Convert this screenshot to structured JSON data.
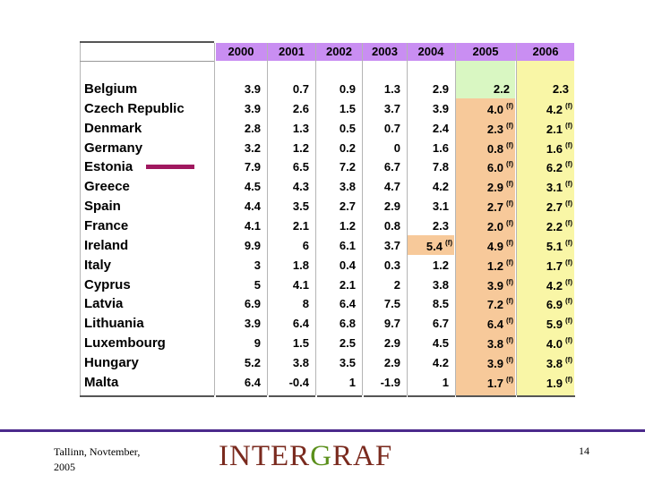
{
  "table": {
    "years": [
      "2000",
      "2001",
      "2002",
      "2003",
      "2004",
      "2005",
      "2006"
    ],
    "forecast_mark": "(f)",
    "rows": [
      {
        "country": "Belgium",
        "values": [
          {
            "v": "3.9"
          },
          {
            "v": "0.7"
          },
          {
            "v": "0.9"
          },
          {
            "v": "1.3"
          },
          {
            "v": "2.9"
          },
          {
            "v": "2.2"
          },
          {
            "v": "2.3"
          }
        ]
      },
      {
        "country": "Czech Republic",
        "values": [
          {
            "v": "3.9"
          },
          {
            "v": "2.6"
          },
          {
            "v": "1.5"
          },
          {
            "v": "3.7"
          },
          {
            "v": "3.9"
          },
          {
            "v": "4.0",
            "f": true
          },
          {
            "v": "4.2",
            "f": true
          }
        ]
      },
      {
        "country": "Denmark",
        "values": [
          {
            "v": "2.8"
          },
          {
            "v": "1.3"
          },
          {
            "v": "0.5"
          },
          {
            "v": "0.7"
          },
          {
            "v": "2.4"
          },
          {
            "v": "2.3",
            "f": true
          },
          {
            "v": "2.1",
            "f": true
          }
        ]
      },
      {
        "country": "Germany",
        "values": [
          {
            "v": "3.2"
          },
          {
            "v": "1.2"
          },
          {
            "v": "0.2"
          },
          {
            "v": "0"
          },
          {
            "v": "1.6"
          },
          {
            "v": "0.8",
            "f": true
          },
          {
            "v": "1.6",
            "f": true
          }
        ]
      },
      {
        "country": "Estonia",
        "values": [
          {
            "v": "7.9"
          },
          {
            "v": "6.5"
          },
          {
            "v": "7.2"
          },
          {
            "v": "6.7"
          },
          {
            "v": "7.8"
          },
          {
            "v": "6.0",
            "f": true
          },
          {
            "v": "6.2",
            "f": true
          }
        ]
      },
      {
        "country": "Greece",
        "values": [
          {
            "v": "4.5"
          },
          {
            "v": "4.3"
          },
          {
            "v": "3.8"
          },
          {
            "v": "4.7"
          },
          {
            "v": "4.2"
          },
          {
            "v": "2.9",
            "f": true
          },
          {
            "v": "3.1",
            "f": true
          }
        ]
      },
      {
        "country": "Spain",
        "values": [
          {
            "v": "4.4"
          },
          {
            "v": "3.5"
          },
          {
            "v": "2.7"
          },
          {
            "v": "2.9"
          },
          {
            "v": "3.1"
          },
          {
            "v": "2.7",
            "f": true
          },
          {
            "v": "2.7",
            "f": true
          }
        ]
      },
      {
        "country": "France",
        "values": [
          {
            "v": "4.1"
          },
          {
            "v": "2.1"
          },
          {
            "v": "1.2"
          },
          {
            "v": "0.8"
          },
          {
            "v": "2.3"
          },
          {
            "v": "2.0",
            "f": true
          },
          {
            "v": "2.2",
            "f": true
          }
        ]
      },
      {
        "country": "Ireland",
        "values": [
          {
            "v": "9.9"
          },
          {
            "v": "6"
          },
          {
            "v": "6.1"
          },
          {
            "v": "3.7"
          },
          {
            "v": "5.4",
            "f": true
          },
          {
            "v": "4.9",
            "f": true
          },
          {
            "v": "5.1",
            "f": true
          }
        ]
      },
      {
        "country": "Italy",
        "values": [
          {
            "v": "3"
          },
          {
            "v": "1.8"
          },
          {
            "v": "0.4"
          },
          {
            "v": "0.3"
          },
          {
            "v": "1.2"
          },
          {
            "v": "1.2",
            "f": true
          },
          {
            "v": "1.7",
            "f": true
          }
        ]
      },
      {
        "country": "Cyprus",
        "values": [
          {
            "v": "5"
          },
          {
            "v": "4.1"
          },
          {
            "v": "2.1"
          },
          {
            "v": "2"
          },
          {
            "v": "3.8"
          },
          {
            "v": "3.9",
            "f": true
          },
          {
            "v": "4.2",
            "f": true
          }
        ]
      },
      {
        "country": "Latvia",
        "values": [
          {
            "v": "6.9"
          },
          {
            "v": "8"
          },
          {
            "v": "6.4"
          },
          {
            "v": "7.5"
          },
          {
            "v": "8.5"
          },
          {
            "v": "7.2",
            "f": true
          },
          {
            "v": "6.9",
            "f": true
          }
        ]
      },
      {
        "country": "Lithuania",
        "values": [
          {
            "v": "3.9"
          },
          {
            "v": "6.4"
          },
          {
            "v": "6.8"
          },
          {
            "v": "9.7"
          },
          {
            "v": "6.7"
          },
          {
            "v": "6.4",
            "f": true
          },
          {
            "v": "5.9",
            "f": true
          }
        ]
      },
      {
        "country": "Luxembourg",
        "values": [
          {
            "v": "9"
          },
          {
            "v": "1.5"
          },
          {
            "v": "2.5"
          },
          {
            "v": "2.9"
          },
          {
            "v": "4.5"
          },
          {
            "v": "3.8",
            "f": true
          },
          {
            "v": "4.0",
            "f": true
          }
        ]
      },
      {
        "country": "Hungary",
        "values": [
          {
            "v": "5.2"
          },
          {
            "v": "3.8"
          },
          {
            "v": "3.5"
          },
          {
            "v": "2.9"
          },
          {
            "v": "4.2"
          },
          {
            "v": "3.9",
            "f": true
          },
          {
            "v": "3.8",
            "f": true
          }
        ]
      },
      {
        "country": "Malta",
        "values": [
          {
            "v": "6.4"
          },
          {
            "v": "-0.4"
          },
          {
            "v": "1"
          },
          {
            "v": "-1.9"
          },
          {
            "v": "1"
          },
          {
            "v": "1.7",
            "f": true
          },
          {
            "v": "1.9",
            "f": true
          }
        ]
      }
    ]
  },
  "colors": {
    "header": "#c98ef2",
    "green": "#d9f7c2",
    "orange": "#f7c99a",
    "yellow": "#f9f6a6",
    "marker": "#a0185f",
    "rule": "#4b2a8c"
  },
  "footer": {
    "location_line1": "Tallinn, Novtember,",
    "location_line2": "2005",
    "brand_a": "INTER",
    "brand_b": "G",
    "brand_c": "RAF",
    "page": "14"
  }
}
